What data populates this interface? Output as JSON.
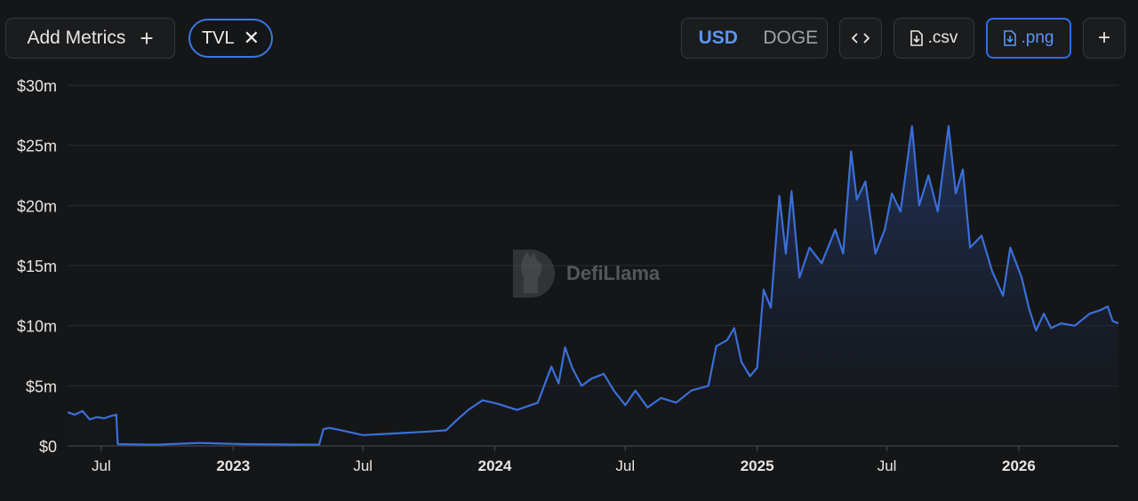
{
  "toolbar": {
    "add_metrics_label": "Add Metrics",
    "add_metrics_plus": "+",
    "metric_chip": "TVL",
    "metric_chip_close": "✕",
    "currency_options": [
      "USD",
      "DOGE"
    ],
    "currency_selected": "USD",
    "embed_icon": "code-icon",
    "csv_label": ".csv",
    "png_label": ".png",
    "plus_label": "+",
    "accent_color": "#3a78e6"
  },
  "watermark": {
    "text": "DefiLlama",
    "icon": "llama-icon"
  },
  "chart_data": {
    "type": "area",
    "y_tick_labels": [
      "$0",
      "$5m",
      "$10m",
      "$15m",
      "$20m",
      "$25m",
      "$30m"
    ],
    "y_ticks": [
      0,
      5,
      10,
      15,
      20,
      25,
      30
    ],
    "ylim": [
      0,
      30
    ],
    "xlim": [
      "2022-05-15",
      "2026-05-20"
    ],
    "x_ticks": [
      {
        "label": "Jul",
        "date": "2022-07-01",
        "bold": false
      },
      {
        "label": "2023",
        "date": "2023-01-01",
        "bold": true
      },
      {
        "label": "Jul",
        "date": "2023-07-01",
        "bold": false
      },
      {
        "label": "2024",
        "date": "2024-01-01",
        "bold": true
      },
      {
        "label": "Jul",
        "date": "2024-07-01",
        "bold": false
      },
      {
        "label": "2025",
        "date": "2025-01-01",
        "bold": true
      },
      {
        "label": "Jul",
        "date": "2025-07-01",
        "bold": false
      },
      {
        "label": "2026",
        "date": "2026-01-01",
        "bold": true
      }
    ],
    "grid": true,
    "line_color": "#3a6fd8",
    "series": [
      {
        "points": [
          [
            "2022-05-15",
            2.8
          ],
          [
            "2022-05-25",
            2.6
          ],
          [
            "2022-06-05",
            2.9
          ],
          [
            "2022-06-15",
            2.2
          ],
          [
            "2022-06-25",
            2.4
          ],
          [
            "2022-07-05",
            2.3
          ],
          [
            "2022-07-15",
            2.5
          ],
          [
            "2022-07-22",
            2.6
          ],
          [
            "2022-07-24",
            0.15
          ],
          [
            "2022-09-15",
            0.1
          ],
          [
            "2022-11-15",
            0.25
          ],
          [
            "2023-01-15",
            0.15
          ],
          [
            "2023-03-15",
            0.12
          ],
          [
            "2023-05-01",
            0.1
          ],
          [
            "2023-05-07",
            1.4
          ],
          [
            "2023-05-15",
            1.5
          ],
          [
            "2023-06-01",
            1.3
          ],
          [
            "2023-07-01",
            0.9
          ],
          [
            "2023-08-01",
            1.0
          ],
          [
            "2023-09-01",
            1.1
          ],
          [
            "2023-10-01",
            1.2
          ],
          [
            "2023-10-25",
            1.3
          ],
          [
            "2023-11-10",
            2.2
          ],
          [
            "2023-11-25",
            3.0
          ],
          [
            "2023-12-15",
            3.8
          ],
          [
            "2024-01-05",
            3.5
          ],
          [
            "2024-02-01",
            3.0
          ],
          [
            "2024-03-01",
            3.6
          ],
          [
            "2024-03-20",
            6.6
          ],
          [
            "2024-03-30",
            5.2
          ],
          [
            "2024-04-08",
            8.2
          ],
          [
            "2024-04-18",
            6.5
          ],
          [
            "2024-05-01",
            5.0
          ],
          [
            "2024-05-15",
            5.6
          ],
          [
            "2024-06-01",
            6.0
          ],
          [
            "2024-06-15",
            4.6
          ],
          [
            "2024-07-01",
            3.4
          ],
          [
            "2024-07-15",
            4.6
          ],
          [
            "2024-08-01",
            3.2
          ],
          [
            "2024-08-20",
            4.0
          ],
          [
            "2024-09-10",
            3.6
          ],
          [
            "2024-10-01",
            4.6
          ],
          [
            "2024-10-25",
            5.0
          ],
          [
            "2024-11-05",
            8.3
          ],
          [
            "2024-11-20",
            8.8
          ],
          [
            "2024-11-30",
            9.8
          ],
          [
            "2024-12-10",
            7.0
          ],
          [
            "2024-12-22",
            5.8
          ],
          [
            "2025-01-01",
            6.5
          ],
          [
            "2025-01-10",
            13.0
          ],
          [
            "2025-01-20",
            11.5
          ],
          [
            "2025-02-01",
            20.8
          ],
          [
            "2025-02-10",
            16.0
          ],
          [
            "2025-02-18",
            21.2
          ],
          [
            "2025-03-01",
            14.0
          ],
          [
            "2025-03-15",
            16.5
          ],
          [
            "2025-04-01",
            15.2
          ],
          [
            "2025-04-20",
            18.0
          ],
          [
            "2025-05-01",
            16.0
          ],
          [
            "2025-05-12",
            24.5
          ],
          [
            "2025-05-20",
            20.5
          ],
          [
            "2025-06-01",
            22.0
          ],
          [
            "2025-06-15",
            16.0
          ],
          [
            "2025-06-28",
            18.0
          ],
          [
            "2025-07-08",
            21.0
          ],
          [
            "2025-07-20",
            19.5
          ],
          [
            "2025-08-05",
            26.6
          ],
          [
            "2025-08-15",
            20.0
          ],
          [
            "2025-08-28",
            22.5
          ],
          [
            "2025-09-10",
            19.5
          ],
          [
            "2025-09-25",
            26.6
          ],
          [
            "2025-10-05",
            21.0
          ],
          [
            "2025-10-15",
            23.0
          ],
          [
            "2025-10-25",
            16.5
          ],
          [
            "2025-11-10",
            17.5
          ],
          [
            "2025-11-25",
            14.5
          ],
          [
            "2025-12-10",
            12.5
          ],
          [
            "2025-12-20",
            16.5
          ],
          [
            "2026-01-05",
            14.0
          ],
          [
            "2026-01-15",
            11.5
          ],
          [
            "2026-01-25",
            9.6
          ],
          [
            "2026-02-05",
            11.0
          ],
          [
            "2026-02-15",
            9.8
          ],
          [
            "2026-03-01",
            10.2
          ],
          [
            "2026-03-20",
            10.0
          ],
          [
            "2026-04-10",
            11.0
          ],
          [
            "2026-04-25",
            11.3
          ],
          [
            "2026-05-05",
            11.6
          ],
          [
            "2026-05-12",
            10.4
          ],
          [
            "2026-05-20",
            10.2
          ]
        ]
      }
    ]
  }
}
